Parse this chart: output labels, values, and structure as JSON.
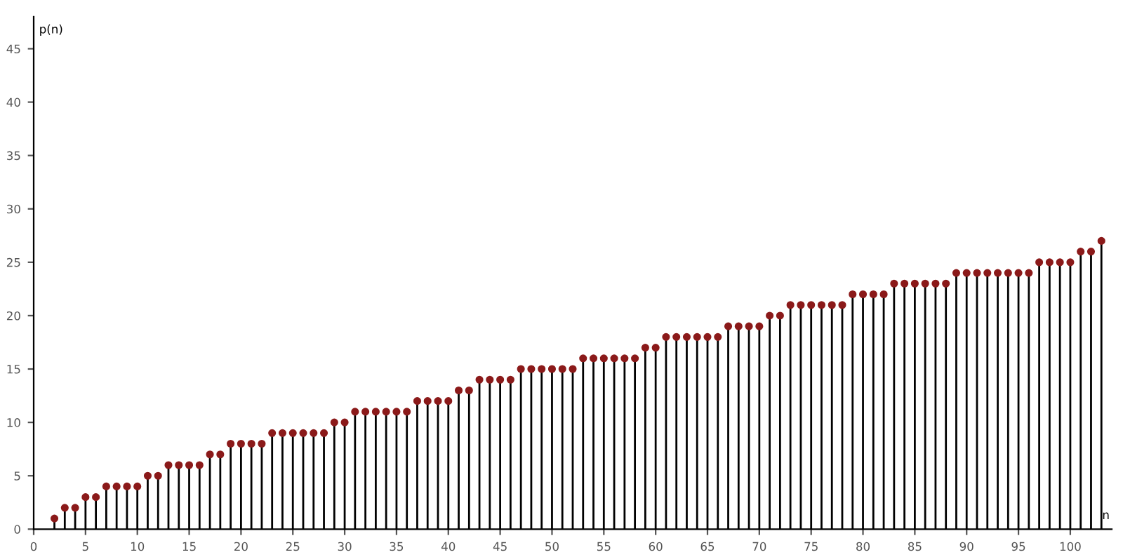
{
  "chart_data": {
    "type": "lollipop",
    "xlabel": "n",
    "ylabel": "p(n)",
    "x": [
      2,
      3,
      4,
      5,
      6,
      7,
      8,
      9,
      10,
      11,
      12,
      13,
      14,
      15,
      16,
      17,
      18,
      19,
      20,
      21,
      22,
      23,
      24,
      25,
      26,
      27,
      28,
      29,
      30,
      31,
      32,
      33,
      34,
      35,
      36,
      37,
      38,
      39,
      40,
      41,
      42,
      43,
      44,
      45,
      46,
      47,
      48,
      49,
      50,
      51,
      52,
      53,
      54,
      55,
      56,
      57,
      58,
      59,
      60,
      61,
      62,
      63,
      64,
      65,
      66,
      67,
      68,
      69,
      70,
      71,
      72,
      73,
      74,
      75,
      76,
      77,
      78,
      79,
      80,
      81,
      82,
      83,
      84,
      85,
      86,
      87,
      88,
      89,
      90,
      91,
      92,
      93,
      94,
      95,
      96,
      97,
      98,
      99,
      100,
      101,
      102,
      103
    ],
    "values": [
      1,
      2,
      2,
      3,
      3,
      4,
      4,
      4,
      4,
      5,
      5,
      6,
      6,
      6,
      6,
      7,
      7,
      8,
      8,
      8,
      8,
      9,
      9,
      9,
      9,
      9,
      9,
      10,
      10,
      11,
      11,
      11,
      11,
      11,
      11,
      12,
      12,
      12,
      12,
      13,
      13,
      14,
      14,
      14,
      14,
      15,
      15,
      15,
      15,
      15,
      15,
      16,
      16,
      16,
      16,
      16,
      16,
      17,
      17,
      18,
      18,
      18,
      18,
      18,
      18,
      19,
      19,
      19,
      19,
      20,
      20,
      21,
      21,
      21,
      21,
      21,
      21,
      22,
      22,
      22,
      22,
      23,
      23,
      23,
      23,
      23,
      23,
      24,
      24,
      24,
      24,
      24,
      24,
      24,
      24,
      25,
      25,
      25,
      25,
      26,
      26,
      27
    ],
    "color": "#8b1a1a",
    "marker": "circle",
    "grid": false,
    "xlim": [
      0,
      104
    ],
    "ylim": [
      0,
      48
    ],
    "xticks": [
      0,
      5,
      10,
      15,
      20,
      25,
      30,
      35,
      40,
      45,
      50,
      55,
      60,
      65,
      70,
      75,
      80,
      85,
      90,
      95,
      100
    ],
    "yticks": [
      0,
      5,
      10,
      15,
      20,
      25,
      30,
      35,
      40,
      45
    ]
  }
}
